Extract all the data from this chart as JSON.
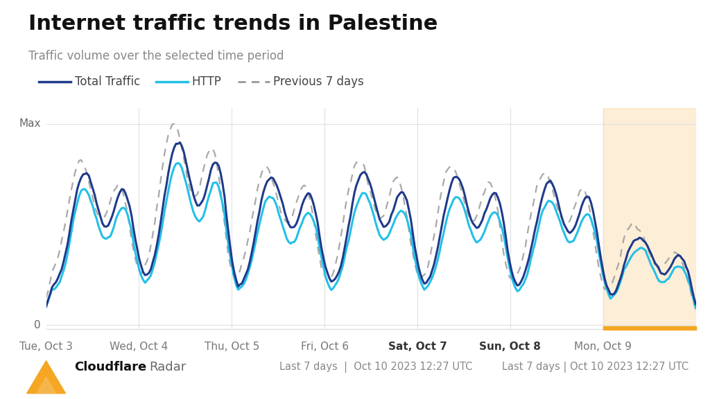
{
  "title": "Internet traffic trends in Palestine",
  "subtitle": "Traffic volume over the selected time period",
  "footer_right": "Last 7 days | Oct 10 2023 12:27 UTC",
  "x_labels": [
    "Tue, Oct 3",
    "Wed, Oct 4",
    "Thu, Oct 5",
    "Fri, Oct 6",
    "Sat, Oct 7",
    "Sun, Oct 8",
    "Mon, Oct 9"
  ],
  "x_labels_bold": [
    false,
    false,
    false,
    false,
    true,
    true,
    false
  ],
  "y_label_max": "Max",
  "y_label_zero": "0",
  "color_total": "#1e3a8a",
  "color_http": "#22c0e8",
  "color_prev": "#999999",
  "highlight_color": "#f5a623",
  "highlight_alpha": 0.18,
  "background_color": "#ffffff",
  "grid_color": "#e0e0e0",
  "title_fontsize": 22,
  "subtitle_fontsize": 12,
  "tick_fontsize": 11,
  "legend_fontsize": 12
}
